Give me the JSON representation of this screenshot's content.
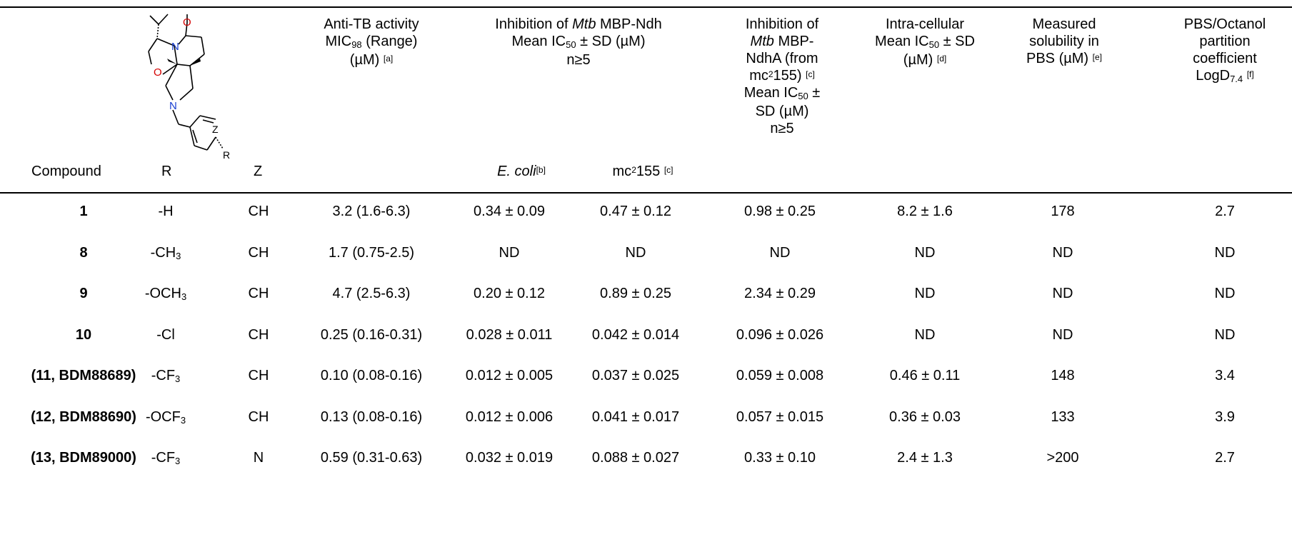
{
  "header": {
    "compound": "Compound",
    "r": "R",
    "z": "Z",
    "anti_tb": {
      "l1": "Anti-TB activity",
      "l2a": "MIC",
      "l2sub": "98",
      "l2b": " (Range)",
      "l3": "(µM) ",
      "ref": "[a]"
    },
    "inhib_ndh": {
      "l1a": "Inhibition of ",
      "l1i": "Mtb",
      "l1b": " MBP-Ndh",
      "l2a": "Mean IC",
      "l2sub": "50",
      "l2b": " ± SD (µM)",
      "l3": "n≥5"
    },
    "ecoli": {
      "label": "E. coli",
      "ref": "[b]"
    },
    "mc155": {
      "a": "mc",
      "sup": "2",
      "b": "155 ",
      "ref": "[c]"
    },
    "inhib_ndha": {
      "l1": "Inhibition of",
      "l2i": "Mtb",
      "l2b": " MBP-",
      "l3": "NdhA (from",
      "l4a": "mc",
      "l4sup": "2",
      "l4b": "155) ",
      "l4ref": "[c]",
      "l5a": "Mean IC",
      "l5sub": "50",
      "l5b": " ±",
      "l6": "SD (µM)",
      "l7": "n≥5"
    },
    "intracell": {
      "l1": "Intra-cellular",
      "l2a": "Mean IC",
      "l2sub": "50",
      "l2b": " ± SD",
      "l3": "(µM) ",
      "ref": "[d]"
    },
    "solubility": {
      "l1": "Measured",
      "l2": "solubility in",
      "l3": "PBS (µM) ",
      "ref": "[e]"
    },
    "logd": {
      "l1": "PBS/Octanol",
      "l2": "partition",
      "l3": "coefficient",
      "l4a": "LogD",
      "l4sub": "7.4",
      "l4b": " ",
      "ref": "[f]"
    }
  },
  "structure": {
    "o_label": "O",
    "n_label": "N",
    "z_label": "Z",
    "r_label": "R"
  },
  "rows": [
    {
      "compound": "1",
      "r": "-H",
      "r_sub": "",
      "z": "CH",
      "mic": "3.2 (1.6-6.3)",
      "ecoli": "0.34 ± 0.09",
      "mc155": "0.47 ± 0.12",
      "ndha": "0.98 ± 0.25",
      "intra": "8.2 ± 1.6",
      "sol": "178",
      "logd": "2.7"
    },
    {
      "compound": "8",
      "r": "-CH",
      "r_sub": "3",
      "z": "CH",
      "mic": "1.7 (0.75-2.5)",
      "ecoli": "ND",
      "mc155": "ND",
      "ndha": "ND",
      "intra": "ND",
      "sol": "ND",
      "logd": "ND"
    },
    {
      "compound": "9",
      "r": "-OCH",
      "r_sub": "3",
      "z": "CH",
      "mic": "4.7 (2.5-6.3)",
      "ecoli": "0.20 ± 0.12",
      "mc155": "0.89 ± 0.25",
      "ndha": "2.34 ± 0.29",
      "intra": "ND",
      "sol": "ND",
      "logd": "ND"
    },
    {
      "compound": "10",
      "r": "-Cl",
      "r_sub": "",
      "z": "CH",
      "mic": "0.25 (0.16-0.31)",
      "ecoli": "0.028 ± 0.011",
      "mc155": "0.042 ± 0.014",
      "ndha": "0.096 ± 0.026",
      "intra": "ND",
      "sol": "ND",
      "logd": "ND"
    },
    {
      "compound": "(11, BDM88689)",
      "r": "-CF",
      "r_sub": "3",
      "z": "CH",
      "mic": "0.10 (0.08-0.16)",
      "ecoli": "0.012 ± 0.005",
      "mc155": "0.037 ± 0.025",
      "ndha": "0.059 ± 0.008",
      "intra": "0.46 ± 0.11",
      "sol": "148",
      "logd": "3.4"
    },
    {
      "compound": "(12, BDM88690)",
      "r": "-OCF",
      "r_sub": "3",
      "z": "CH",
      "mic": "0.13 (0.08-0.16)",
      "ecoli": "0.012 ± 0.006",
      "mc155": "0.041 ± 0.017",
      "ndha": "0.057 ± 0.015",
      "intra": "0.36 ± 0.03",
      "sol": "133",
      "logd": "3.9"
    },
    {
      "compound": "(13, BDM89000)",
      "r": "-CF",
      "r_sub": "3",
      "z": "N",
      "mic": "0.59 (0.31-0.63)",
      "ecoli": "0.032 ± 0.019",
      "mc155": "0.088 ± 0.027",
      "ndha": "0.33 ± 0.10",
      "intra": "2.4 ± 1.3",
      "sol": ">200",
      "logd": "2.7"
    }
  ]
}
